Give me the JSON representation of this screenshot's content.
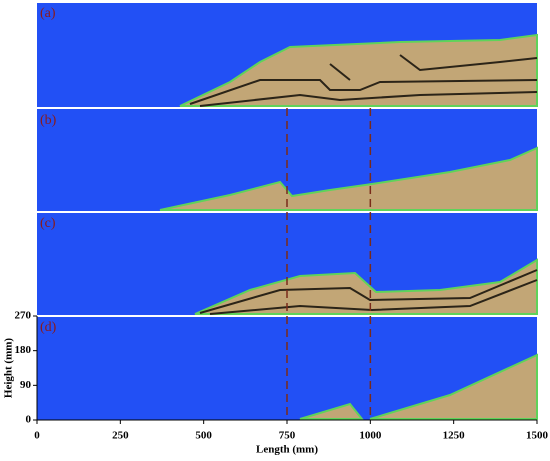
{
  "chart_data": {
    "type": "panels",
    "panel_labels": [
      "(a)",
      "(b)",
      "(c)",
      "(d)"
    ],
    "x_label": "Length (mm)",
    "y_label": "Height (mm)",
    "xlim": [
      0,
      1500
    ],
    "xticks": [
      0,
      250,
      500,
      750,
      1000,
      1250,
      1500
    ],
    "ylim": [
      0,
      270
    ],
    "yticks": [
      0,
      90,
      180,
      270
    ],
    "reference_lines_x": [
      750,
      1000
    ]
  }
}
